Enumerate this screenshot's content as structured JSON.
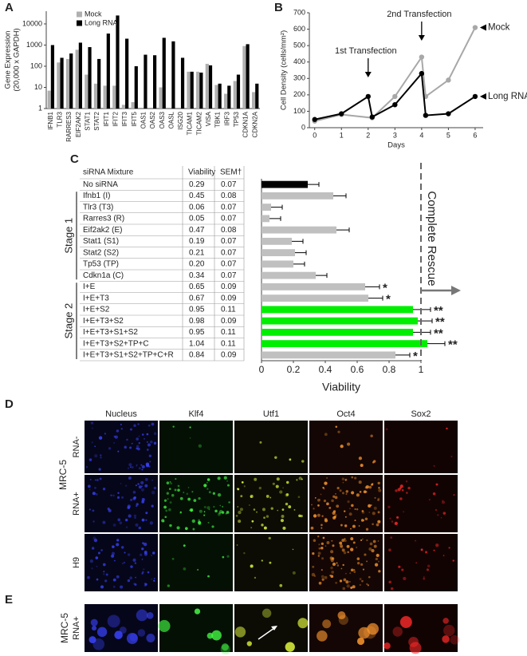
{
  "chart_data": [
    {
      "type": "bar",
      "panel": "A",
      "ylabel": [
        "Gene Expression",
        "(20,000 x GAPDH)"
      ],
      "log_scale": true,
      "categories": [
        "IFNB1",
        "TLR3",
        "RARRES3",
        "EIF2AK2",
        "STAT1",
        "STAT2",
        "IFIT1",
        "IFIT2",
        "IFIT3",
        "IFIT5",
        "OAS1",
        "OAS2",
        "OAS3",
        "OASL",
        "ISG20",
        "TICAM1",
        "TICAM2",
        "VISA",
        "TBK1",
        "IRF3",
        "TP53",
        "CDKN1A",
        "CDKN2A"
      ],
      "series": [
        {
          "name": "Mock",
          "color": "#b0b0b0",
          "values": [
            7,
            150,
            220,
            600,
            40,
            15,
            12,
            12,
            1.5,
            2,
            1,
            1,
            10,
            1,
            1,
            55,
            55,
            130,
            13,
            5,
            20,
            900,
            6
          ]
        },
        {
          "name": "Long RNA",
          "color": "#000000",
          "values": [
            1000,
            250,
            400,
            1300,
            800,
            220,
            3500,
            25000,
            2000,
            100,
            350,
            330,
            2200,
            1500,
            250,
            55,
            50,
            110,
            15,
            12,
            40,
            1100,
            15
          ]
        }
      ],
      "ylim": [
        1,
        40000
      ],
      "yticks": [
        1,
        10,
        100,
        1000,
        10000
      ],
      "legend": "upper left"
    },
    {
      "type": "line",
      "panel": "B",
      "ylabel": "Cell Density (cells/mm²)",
      "xlabel": "Days",
      "series": [
        {
          "name": "Mock",
          "color": "#a8a8a8",
          "x": [
            0,
            1,
            2.15,
            3,
            4,
            4.15,
            5,
            6
          ],
          "values": [
            40,
            80,
            60,
            190,
            430,
            190,
            290,
            610
          ]
        },
        {
          "name": "Long RNA",
          "color": "#000000",
          "x": [
            0,
            1,
            2,
            2.15,
            3,
            4,
            4.15,
            5,
            6
          ],
          "values": [
            50,
            85,
            190,
            65,
            140,
            330,
            75,
            85,
            190
          ]
        }
      ],
      "annotations": [
        {
          "text": "1st Transfection",
          "x": 2
        },
        {
          "text": "2nd Transfection",
          "x": 4
        }
      ],
      "xlim": [
        -0.2,
        6.3
      ],
      "xticks": [
        0,
        1,
        2,
        3,
        4,
        5,
        6
      ],
      "ylim": [
        0,
        700
      ],
      "yticks": [
        0,
        100,
        200,
        300,
        400,
        500,
        600,
        700
      ]
    },
    {
      "type": "hbar",
      "panel": "C",
      "xlabel": "Viability",
      "columns": [
        "siRNA Mixture",
        "Viability",
        "SEM†"
      ],
      "categories": [
        "No siRNA",
        "Ifnb1 (I)",
        "Tlr3 (T3)",
        "Rarres3 (R)",
        "Eif2ak2 (E)",
        "Stat1 (S1)",
        "Stat2 (S2)",
        "Tp53 (TP)",
        "Cdkn1a (C)",
        "I+E",
        "I+E+T3",
        "I+E+S2",
        "I+E+T3+S2",
        "I+E+T3+S1+S2",
        "I+E+T3+S2+TP+C",
        "I+E+T3+S1+S2+TP+C+R"
      ],
      "values": [
        0.29,
        0.45,
        0.06,
        0.05,
        0.47,
        0.19,
        0.21,
        0.2,
        0.34,
        0.65,
        0.67,
        0.95,
        0.98,
        0.95,
        1.04,
        0.84
      ],
      "value_labels": [
        "0.29",
        "0.45",
        "0.06",
        "0.05",
        "0.47",
        "0.19",
        "0.21",
        "0.20",
        "0.34",
        "0.65",
        "0.67",
        "0.95",
        "0.98",
        "0.95",
        "1.04",
        "0.84"
      ],
      "errors": [
        0.07,
        0.08,
        0.07,
        0.07,
        0.08,
        0.07,
        0.07,
        0.07,
        0.07,
        0.09,
        0.09,
        0.11,
        0.09,
        0.11,
        0.11,
        0.09
      ],
      "error_labels": [
        "0.07",
        "0.08",
        "0.07",
        "0.07",
        "0.08",
        "0.07",
        "0.07",
        "0.07",
        "0.07",
        "0.09",
        "0.09",
        "0.11",
        "0.09",
        "0.11",
        "0.11",
        "0.09"
      ],
      "colors": [
        "#000000",
        "#c0c0c0",
        "#c0c0c0",
        "#c0c0c0",
        "#c0c0c0",
        "#c0c0c0",
        "#c0c0c0",
        "#c0c0c0",
        "#c0c0c0",
        "#c0c0c0",
        "#c0c0c0",
        "#00ee00",
        "#00ee00",
        "#00ee00",
        "#00ee00",
        "#c0c0c0"
      ],
      "significance": [
        null,
        null,
        null,
        null,
        null,
        null,
        null,
        null,
        null,
        "*",
        "*",
        "**",
        "**",
        "**",
        "**",
        "*"
      ],
      "groups": [
        {
          "label": "Stage 1",
          "rows": [
            1,
            8
          ]
        },
        {
          "label": "Stage 2",
          "rows": [
            9,
            15
          ]
        }
      ],
      "reference": {
        "text": "Complete Rescue",
        "value": 1
      },
      "xlim": [
        0,
        1
      ],
      "xticks": [
        0,
        0.2,
        0.4,
        0.6,
        0.8,
        1
      ]
    }
  ],
  "micrographs": {
    "panel": "D",
    "columns": [
      "Nucleus",
      "Klf4",
      "Utf1",
      "Oct4",
      "Sox2"
    ],
    "cell_line": "MRC-5",
    "rows": [
      "RNA-",
      "RNA+",
      "H9"
    ]
  },
  "inset": {
    "panel": "E",
    "cell_line": "MRC-5",
    "row": "RNA+"
  }
}
